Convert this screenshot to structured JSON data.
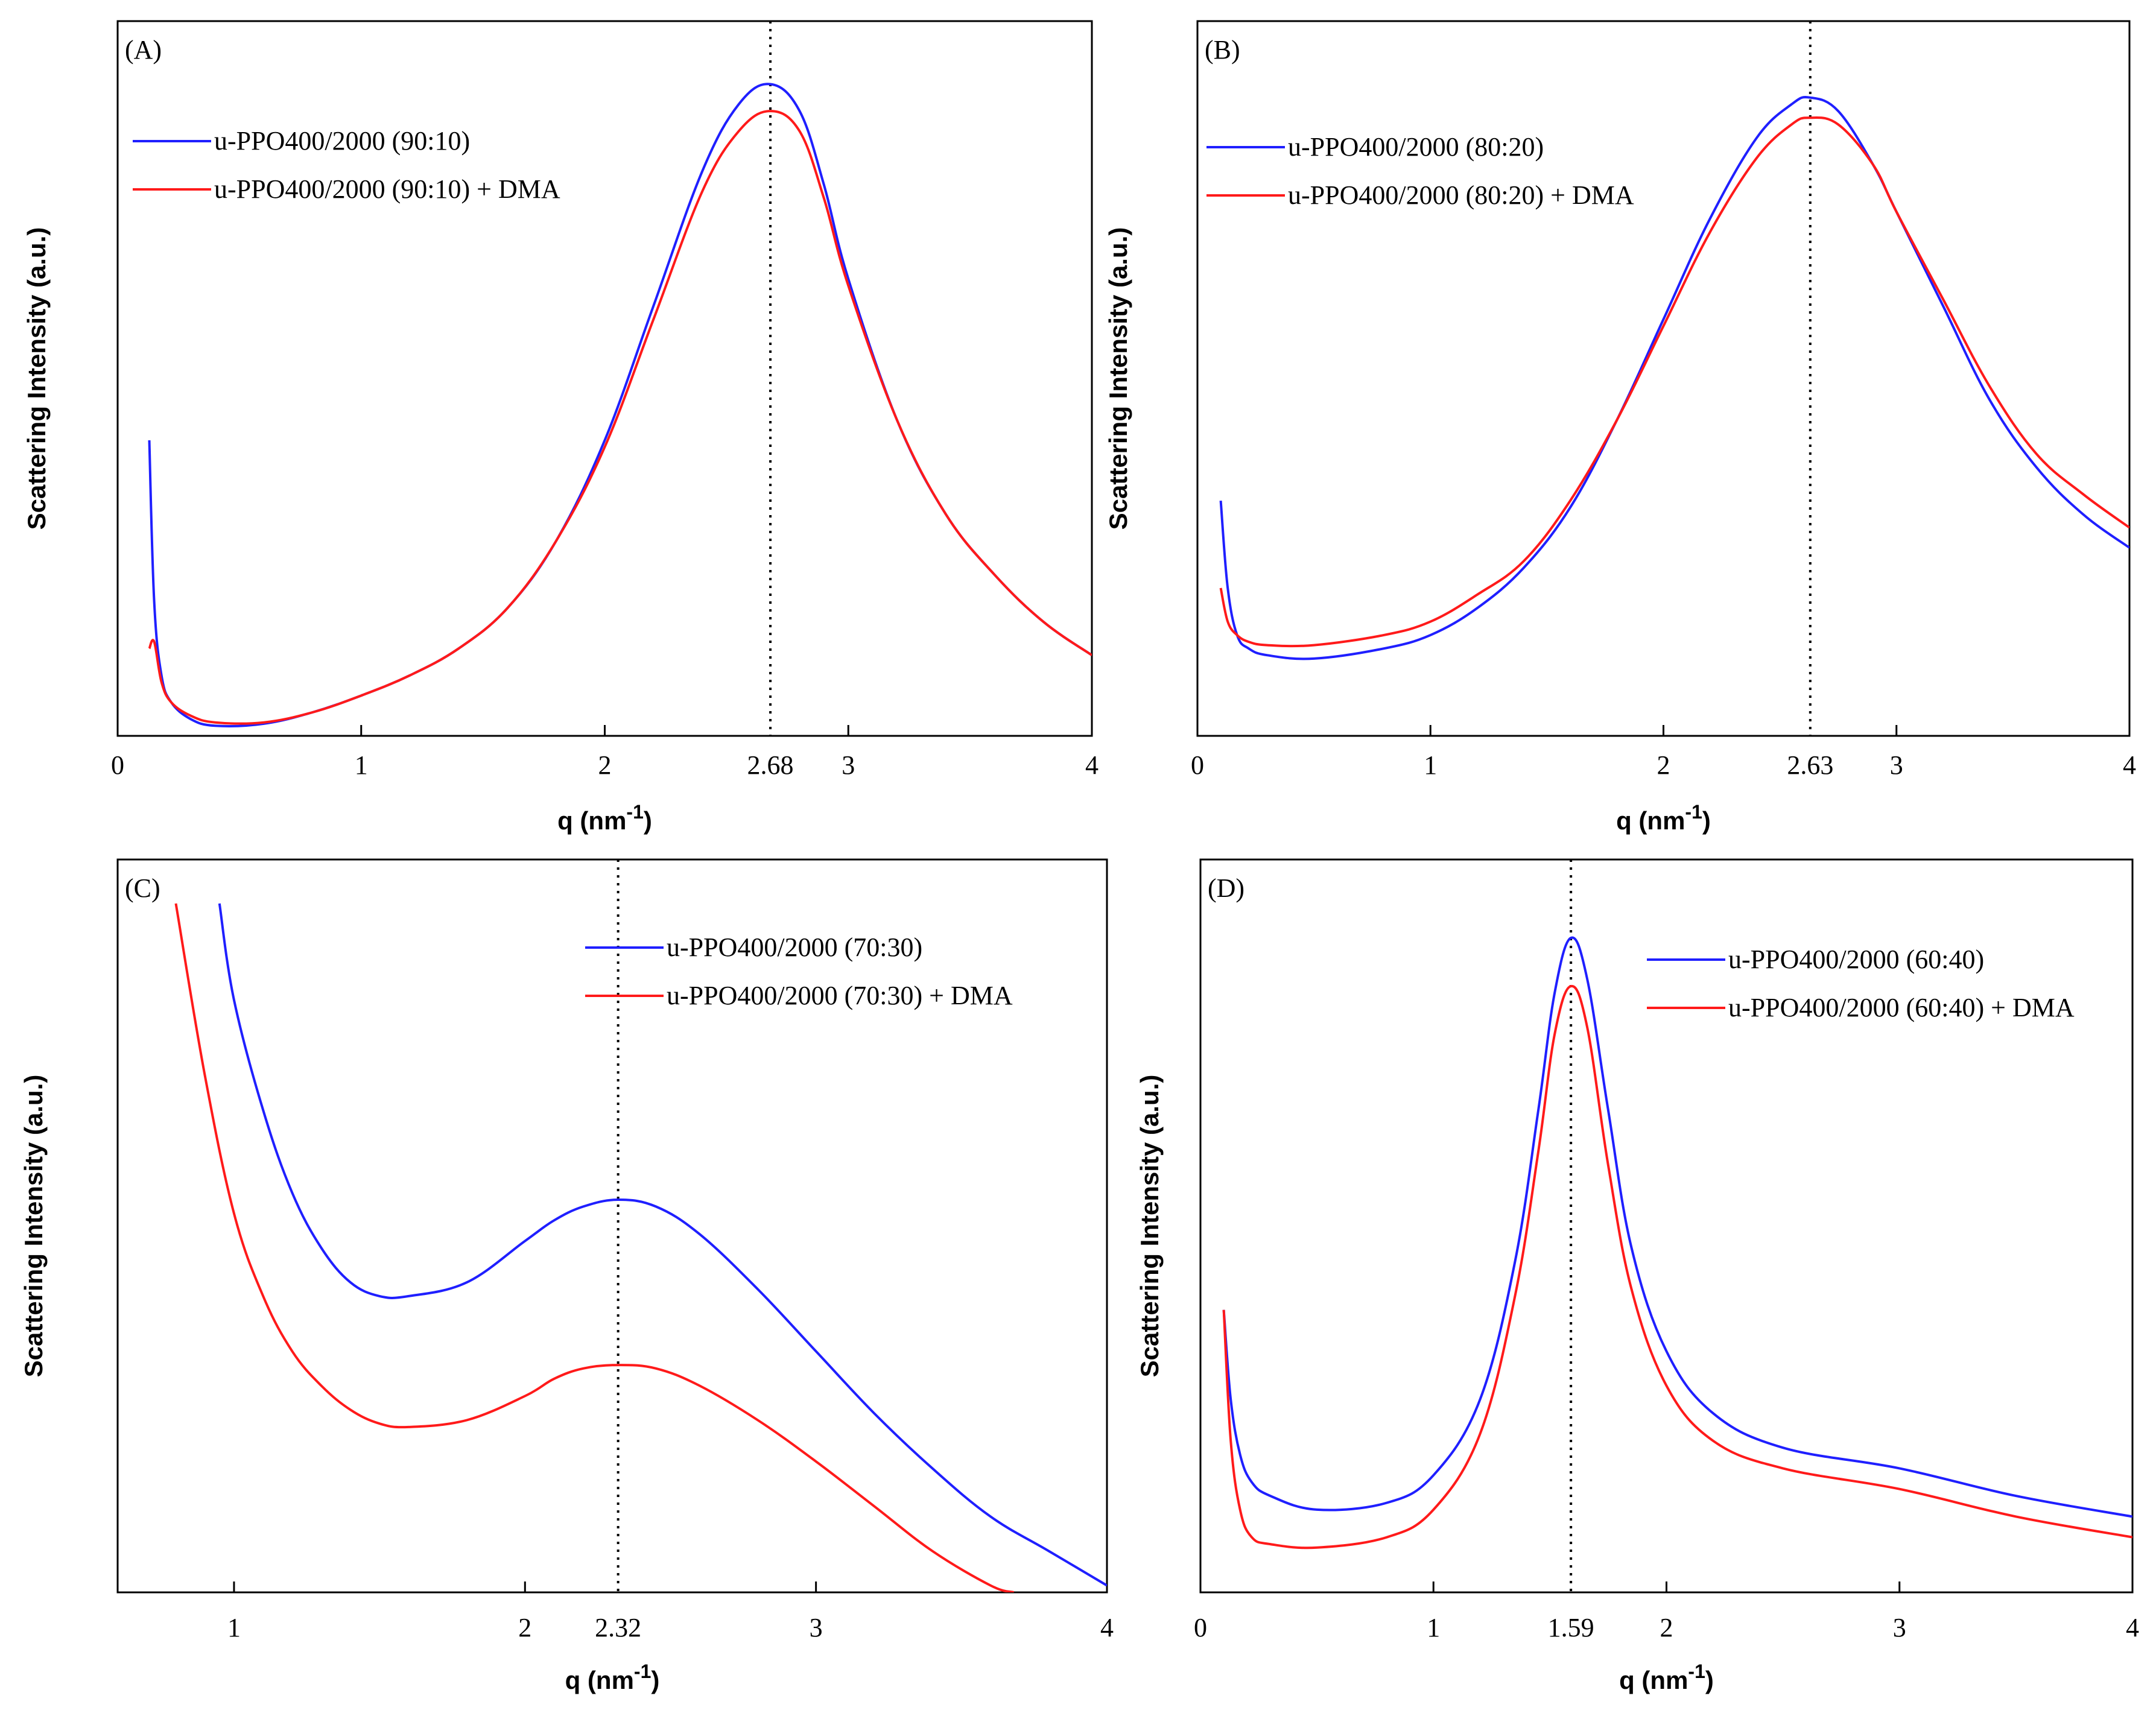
{
  "chart_data": [
    {
      "type": "line",
      "panel_label": "(A)",
      "xlabel": "q (nm",
      "xlabel_sup": "-1",
      "xlabel_close": ")",
      "ylabel": "Scattering Intensity (a.u.)",
      "xlim": [
        0,
        4
      ],
      "ylim": [
        0,
        100
      ],
      "xticks": [
        0,
        1,
        2,
        3,
        4
      ],
      "peak_q": 2.68,
      "peak_label": "2.68",
      "series": [
        {
          "name": "u-PPO400/2000 (90:10)",
          "color": "#1f1fff",
          "x": [
            0.13,
            0.15,
            0.18,
            0.22,
            0.3,
            0.4,
            0.6,
            0.8,
            1.0,
            1.2,
            1.4,
            1.6,
            1.8,
            2.0,
            2.2,
            2.4,
            2.55,
            2.68,
            2.8,
            2.9,
            3.0,
            3.2,
            3.4,
            3.6,
            3.8,
            4.0
          ],
          "y": [
            44,
            20,
            9,
            5,
            2.5,
            1.5,
            1.8,
            3.5,
            6,
            9,
            13,
            19,
            29,
            44,
            64,
            84,
            94,
            97,
            93,
            82,
            68,
            47,
            33,
            24,
            17,
            12
          ]
        },
        {
          "name": "u-PPO400/2000 (90:10) + DMA",
          "color": "#ff1a1a",
          "x": [
            0.13,
            0.15,
            0.18,
            0.22,
            0.3,
            0.4,
            0.6,
            0.8,
            1.0,
            1.2,
            1.4,
            1.6,
            1.8,
            2.0,
            2.2,
            2.4,
            2.55,
            2.68,
            2.8,
            2.9,
            3.0,
            3.2,
            3.4,
            3.6,
            3.8,
            4.0
          ],
          "y": [
            13,
            14,
            8,
            5,
            3,
            2,
            2,
            3.5,
            6,
            9,
            13,
            19,
            29,
            43,
            62,
            81,
            90,
            93,
            90,
            80,
            67,
            47,
            33,
            24,
            17,
            12
          ]
        }
      ]
    },
    {
      "type": "line",
      "panel_label": "(B)",
      "xlabel": "q (nm",
      "xlabel_sup": "-1",
      "xlabel_close": ")",
      "ylabel": "Scattering Intensity (a.u.)",
      "xlim": [
        0,
        4
      ],
      "ylim": [
        0,
        100
      ],
      "xticks": [
        0,
        1,
        2,
        3,
        4
      ],
      "peak_q": 2.63,
      "peak_label": "2.63",
      "series": [
        {
          "name": "u-PPO400/2000 (80:20)",
          "color": "#1f1fff",
          "x": [
            0.1,
            0.13,
            0.17,
            0.22,
            0.3,
            0.5,
            0.8,
            1.0,
            1.2,
            1.4,
            1.6,
            1.8,
            2.0,
            2.2,
            2.4,
            2.55,
            2.63,
            2.75,
            2.9,
            3.0,
            3.2,
            3.4,
            3.6,
            3.8,
            4.0
          ],
          "y": [
            35,
            22,
            15,
            13,
            12,
            11.5,
            13,
            15,
            19,
            25,
            34,
            47,
            62,
            77,
            89,
            94,
            95,
            93,
            85,
            78,
            64,
            50,
            40,
            33,
            28
          ]
        },
        {
          "name": "u-PPO400/2000 (80:20) + DMA",
          "color": "#ff1a1a",
          "x": [
            0.1,
            0.13,
            0.17,
            0.22,
            0.3,
            0.5,
            0.8,
            1.0,
            1.2,
            1.4,
            1.6,
            1.8,
            2.0,
            2.2,
            2.4,
            2.55,
            2.63,
            2.75,
            2.9,
            3.0,
            3.2,
            3.4,
            3.6,
            3.8,
            4.0
          ],
          "y": [
            22,
            17,
            15,
            14,
            13.5,
            13.5,
            15,
            17,
            21,
            26,
            35,
            47,
            61,
            75,
            86,
            91,
            92,
            91,
            85,
            78,
            65,
            52,
            42,
            36,
            31
          ]
        }
      ]
    },
    {
      "type": "line",
      "panel_label": "(C)",
      "xlabel": "q (nm",
      "xlabel_sup": "-1",
      "xlabel_close": ")",
      "ylabel": "Scattering Intensity (a.u.)",
      "xlim": [
        0.6,
        4
      ],
      "ylim": [
        0,
        100
      ],
      "xticks": [
        1,
        2,
        3,
        4
      ],
      "peak_q": 2.32,
      "peak_label": "2.32",
      "series": [
        {
          "name": "u-PPO400/2000 (70:30)",
          "color": "#1f1fff",
          "x": [
            0.95,
            1.0,
            1.1,
            1.2,
            1.3,
            1.4,
            1.5,
            1.6,
            1.8,
            2.0,
            2.1,
            2.2,
            2.32,
            2.45,
            2.6,
            2.8,
            3.0,
            3.2,
            3.4,
            3.6,
            3.8,
            4.0
          ],
          "y": [
            100,
            86,
            70,
            58,
            50,
            45,
            43,
            43,
            45,
            51,
            54,
            56,
            57,
            56,
            52,
            44,
            35,
            26,
            18,
            11,
            6,
            1
          ]
        },
        {
          "name": "u-PPO400/2000 (70:30) + DMA",
          "color": "#ff1a1a",
          "x": [
            0.8,
            0.9,
            1.0,
            1.1,
            1.2,
            1.3,
            1.4,
            1.5,
            1.6,
            1.8,
            2.0,
            2.1,
            2.2,
            2.32,
            2.45,
            2.6,
            2.8,
            3.0,
            3.2,
            3.4,
            3.6,
            3.68
          ],
          "y": [
            100,
            75,
            55,
            43,
            35,
            30,
            26.5,
            24.5,
            24,
            25,
            28.5,
            31,
            32.5,
            33,
            32.5,
            30,
            25,
            19,
            12.5,
            6,
            1,
            0
          ]
        }
      ]
    },
    {
      "type": "line",
      "panel_label": "(D)",
      "xlabel": "q (nm",
      "xlabel_sup": "-1",
      "xlabel_close": ")",
      "ylabel": "Scattering Intensity (a.u.)",
      "xlim": [
        0,
        4
      ],
      "ylim": [
        0,
        100
      ],
      "xticks": [
        0,
        1,
        2,
        3,
        4
      ],
      "peak_q": 1.59,
      "peak_label": "1.59",
      "series": [
        {
          "name": "u-PPO400/2000 (60:40)",
          "color": "#1f1fff",
          "x": [
            0.1,
            0.13,
            0.17,
            0.22,
            0.3,
            0.5,
            0.8,
            1.0,
            1.2,
            1.35,
            1.45,
            1.52,
            1.59,
            1.66,
            1.75,
            1.85,
            2.0,
            2.2,
            2.5,
            3.0,
            3.5,
            4.0
          ],
          "y": [
            41,
            28,
            20,
            16,
            14,
            12,
            13,
            17,
            28,
            48,
            70,
            87,
            95,
            89,
            70,
            50,
            35,
            26,
            21,
            18,
            14,
            11
          ]
        },
        {
          "name": "u-PPO400/2000 (60:40) + DMA",
          "color": "#ff1a1a",
          "x": [
            0.1,
            0.13,
            0.17,
            0.22,
            0.3,
            0.5,
            0.8,
            1.0,
            1.2,
            1.35,
            1.45,
            1.52,
            1.59,
            1.66,
            1.75,
            1.85,
            2.0,
            2.2,
            2.5,
            3.0,
            3.5,
            4.0
          ],
          "y": [
            41,
            22,
            12,
            8,
            7,
            6.5,
            8,
            12,
            23,
            43,
            64,
            81,
            88,
            82,
            62,
            44,
            30,
            22,
            18,
            15,
            11,
            8
          ]
        }
      ]
    }
  ]
}
